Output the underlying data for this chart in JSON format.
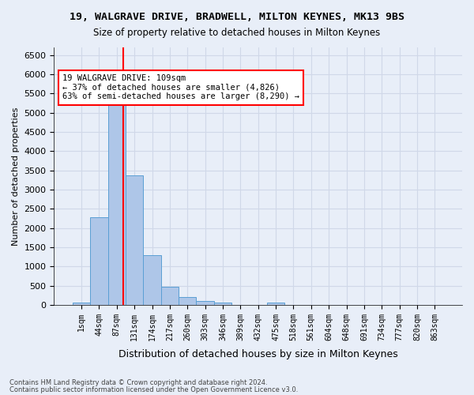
{
  "title_line1": "19, WALGRAVE DRIVE, BRADWELL, MILTON KEYNES, MK13 9BS",
  "title_line2": "Size of property relative to detached houses in Milton Keynes",
  "xlabel": "Distribution of detached houses by size in Milton Keynes",
  "ylabel": "Number of detached properties",
  "footer_line1": "Contains HM Land Registry data © Crown copyright and database right 2024.",
  "footer_line2": "Contains public sector information licensed under the Open Government Licence v3.0.",
  "bin_labels": [
    "1sqm",
    "44sqm",
    "87sqm",
    "131sqm",
    "174sqm",
    "217sqm",
    "260sqm",
    "303sqm",
    "346sqm",
    "389sqm",
    "432sqm",
    "475sqm",
    "518sqm",
    "561sqm",
    "604sqm",
    "648sqm",
    "691sqm",
    "734sqm",
    "777sqm",
    "820sqm",
    "863sqm"
  ],
  "bar_values": [
    70,
    2280,
    5420,
    3370,
    1290,
    470,
    210,
    100,
    50,
    0,
    0,
    60,
    0,
    0,
    0,
    0,
    0,
    0,
    0,
    0,
    0
  ],
  "bar_color": "#aec6e8",
  "bar_edge_color": "#5a9fd4",
  "grid_color": "#d0d8e8",
  "bg_color": "#e8eef8",
  "vline_x": 2.37,
  "vline_color": "red",
  "annotation_text": "19 WALGRAVE DRIVE: 109sqm\n← 37% of detached houses are smaller (4,826)\n63% of semi-detached houses are larger (8,290) →",
  "annotation_box_color": "white",
  "annotation_border_color": "red",
  "ylim": [
    0,
    6700
  ],
  "yticks": [
    0,
    500,
    1000,
    1500,
    2000,
    2500,
    3000,
    3500,
    4000,
    4500,
    5000,
    5500,
    6000,
    6500
  ]
}
